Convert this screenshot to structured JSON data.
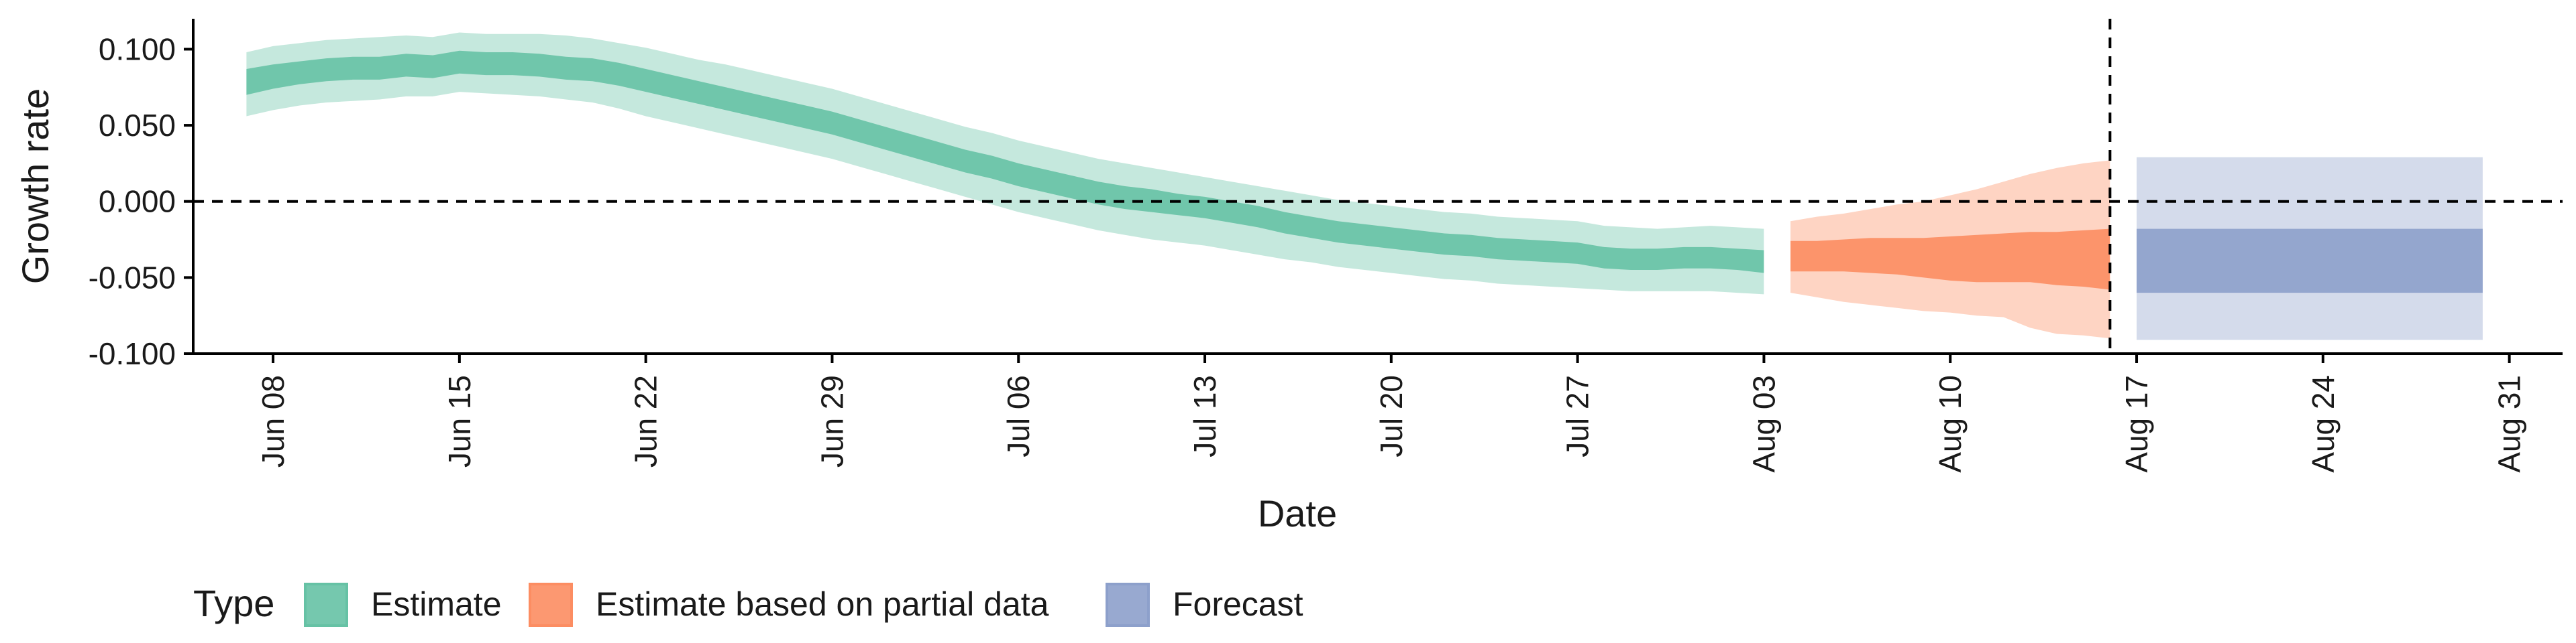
{
  "chart_data": {
    "type": "area",
    "xlabel": "Date",
    "ylabel": "Growth rate",
    "ylim": [
      -0.1,
      0.12
    ],
    "xlim": [
      "2020-06-05",
      "2020-09-02"
    ],
    "y_ticks": [
      0.1,
      0.05,
      0.0,
      -0.05,
      -0.1
    ],
    "y_tick_labels": [
      "0.100",
      "0.050",
      "0.000",
      "-0.050",
      "-0.100"
    ],
    "x_ticks": [
      "2020-06-08",
      "2020-06-15",
      "2020-06-22",
      "2020-06-29",
      "2020-07-06",
      "2020-07-13",
      "2020-07-20",
      "2020-07-27",
      "2020-08-03",
      "2020-08-10",
      "2020-08-17",
      "2020-08-24",
      "2020-08-31"
    ],
    "x_tick_labels": [
      "Jun 08",
      "Jun 15",
      "Jun 22",
      "Jun 29",
      "Jul 06",
      "Jul 13",
      "Jul 20",
      "Jul 27",
      "Aug 03",
      "Aug 10",
      "Aug 17",
      "Aug 24",
      "Aug 31"
    ],
    "reference_lines": {
      "horizontal_y": 0.0,
      "vertical_x": "2020-08-16"
    },
    "grid": false,
    "legend": {
      "title": "Type",
      "position": "bottom-left",
      "entries": [
        "Estimate",
        "Estimate based on partial data",
        "Forecast"
      ]
    },
    "series": [
      {
        "name": "Estimate",
        "color": "#66c2a5",
        "x": [
          "2020-06-07",
          "2020-06-08",
          "2020-06-09",
          "2020-06-10",
          "2020-06-11",
          "2020-06-12",
          "2020-06-13",
          "2020-06-14",
          "2020-06-15",
          "2020-06-16",
          "2020-06-17",
          "2020-06-18",
          "2020-06-19",
          "2020-06-20",
          "2020-06-21",
          "2020-06-22",
          "2020-06-23",
          "2020-06-24",
          "2020-06-25",
          "2020-06-26",
          "2020-06-27",
          "2020-06-28",
          "2020-06-29",
          "2020-06-30",
          "2020-07-01",
          "2020-07-02",
          "2020-07-03",
          "2020-07-04",
          "2020-07-05",
          "2020-07-06",
          "2020-07-07",
          "2020-07-08",
          "2020-07-09",
          "2020-07-10",
          "2020-07-11",
          "2020-07-12",
          "2020-07-13",
          "2020-07-14",
          "2020-07-15",
          "2020-07-16",
          "2020-07-17",
          "2020-07-18",
          "2020-07-19",
          "2020-07-20",
          "2020-07-21",
          "2020-07-22",
          "2020-07-23",
          "2020-07-24",
          "2020-07-25",
          "2020-07-26",
          "2020-07-27",
          "2020-07-28",
          "2020-07-29",
          "2020-07-30",
          "2020-07-31",
          "2020-08-01",
          "2020-08-02",
          "2020-08-03"
        ],
        "inner_lower": [
          0.07,
          0.074,
          0.077,
          0.079,
          0.08,
          0.08,
          0.082,
          0.081,
          0.084,
          0.083,
          0.083,
          0.082,
          0.08,
          0.079,
          0.076,
          0.072,
          0.068,
          0.064,
          0.06,
          0.056,
          0.052,
          0.048,
          0.044,
          0.039,
          0.034,
          0.029,
          0.024,
          0.019,
          0.015,
          0.01,
          0.006,
          0.002,
          -0.002,
          -0.005,
          -0.007,
          -0.009,
          -0.011,
          -0.014,
          -0.017,
          -0.021,
          -0.024,
          -0.027,
          -0.029,
          -0.031,
          -0.033,
          -0.035,
          -0.036,
          -0.038,
          -0.039,
          -0.04,
          -0.041,
          -0.044,
          -0.045,
          -0.045,
          -0.044,
          -0.044,
          -0.045,
          -0.047
        ],
        "inner_upper": [
          0.087,
          0.09,
          0.092,
          0.094,
          0.095,
          0.095,
          0.097,
          0.096,
          0.099,
          0.098,
          0.098,
          0.097,
          0.095,
          0.094,
          0.091,
          0.087,
          0.083,
          0.079,
          0.075,
          0.071,
          0.067,
          0.063,
          0.059,
          0.054,
          0.049,
          0.044,
          0.039,
          0.034,
          0.03,
          0.025,
          0.021,
          0.017,
          0.013,
          0.01,
          0.008,
          0.005,
          0.003,
          0.0,
          -0.003,
          -0.007,
          -0.01,
          -0.013,
          -0.015,
          -0.017,
          -0.019,
          -0.021,
          -0.022,
          -0.024,
          -0.025,
          -0.026,
          -0.027,
          -0.03,
          -0.031,
          -0.031,
          -0.03,
          -0.03,
          -0.031,
          -0.032
        ],
        "outer_lower": [
          0.056,
          0.06,
          0.063,
          0.065,
          0.066,
          0.067,
          0.069,
          0.069,
          0.072,
          0.071,
          0.07,
          0.069,
          0.067,
          0.065,
          0.061,
          0.056,
          0.052,
          0.048,
          0.044,
          0.04,
          0.036,
          0.032,
          0.028,
          0.023,
          0.018,
          0.013,
          0.008,
          0.003,
          -0.002,
          -0.007,
          -0.011,
          -0.015,
          -0.019,
          -0.022,
          -0.025,
          -0.027,
          -0.029,
          -0.032,
          -0.035,
          -0.038,
          -0.04,
          -0.043,
          -0.045,
          -0.047,
          -0.049,
          -0.051,
          -0.052,
          -0.054,
          -0.055,
          -0.056,
          -0.057,
          -0.058,
          -0.059,
          -0.059,
          -0.059,
          -0.059,
          -0.06,
          -0.061
        ],
        "outer_upper": [
          0.098,
          0.102,
          0.104,
          0.106,
          0.107,
          0.108,
          0.109,
          0.108,
          0.111,
          0.11,
          0.11,
          0.11,
          0.109,
          0.107,
          0.104,
          0.101,
          0.097,
          0.093,
          0.09,
          0.086,
          0.082,
          0.078,
          0.074,
          0.069,
          0.064,
          0.059,
          0.054,
          0.049,
          0.045,
          0.04,
          0.036,
          0.032,
          0.028,
          0.025,
          0.022,
          0.019,
          0.016,
          0.013,
          0.01,
          0.007,
          0.004,
          0.001,
          -0.001,
          -0.003,
          -0.005,
          -0.007,
          -0.008,
          -0.01,
          -0.011,
          -0.012,
          -0.013,
          -0.016,
          -0.017,
          -0.018,
          -0.017,
          -0.016,
          -0.017,
          -0.018
        ]
      },
      {
        "name": "Estimate based on partial data",
        "color": "#fc8d62",
        "x": [
          "2020-08-04",
          "2020-08-05",
          "2020-08-06",
          "2020-08-07",
          "2020-08-08",
          "2020-08-09",
          "2020-08-10",
          "2020-08-11",
          "2020-08-12",
          "2020-08-13",
          "2020-08-14",
          "2020-08-15",
          "2020-08-16"
        ],
        "inner_lower": [
          -0.046,
          -0.046,
          -0.046,
          -0.047,
          -0.048,
          -0.05,
          -0.052,
          -0.053,
          -0.053,
          -0.053,
          -0.055,
          -0.056,
          -0.058
        ],
        "inner_upper": [
          -0.026,
          -0.026,
          -0.025,
          -0.024,
          -0.024,
          -0.024,
          -0.023,
          -0.022,
          -0.021,
          -0.02,
          -0.02,
          -0.019,
          -0.018
        ],
        "outer_lower": [
          -0.06,
          -0.063,
          -0.066,
          -0.068,
          -0.07,
          -0.072,
          -0.073,
          -0.075,
          -0.076,
          -0.083,
          -0.087,
          -0.088,
          -0.09
        ],
        "outer_upper": [
          -0.013,
          -0.01,
          -0.008,
          -0.005,
          -0.002,
          0.0,
          0.004,
          0.008,
          0.013,
          0.018,
          0.022,
          0.025,
          0.027
        ]
      },
      {
        "name": "Forecast",
        "color": "#8da0cb",
        "x": [
          "2020-08-17",
          "2020-08-30"
        ],
        "inner_lower": [
          -0.06,
          -0.06
        ],
        "inner_upper": [
          -0.018,
          -0.018
        ],
        "outer_lower": [
          -0.091,
          -0.091
        ],
        "outer_upper": [
          0.029,
          0.029
        ]
      }
    ]
  }
}
